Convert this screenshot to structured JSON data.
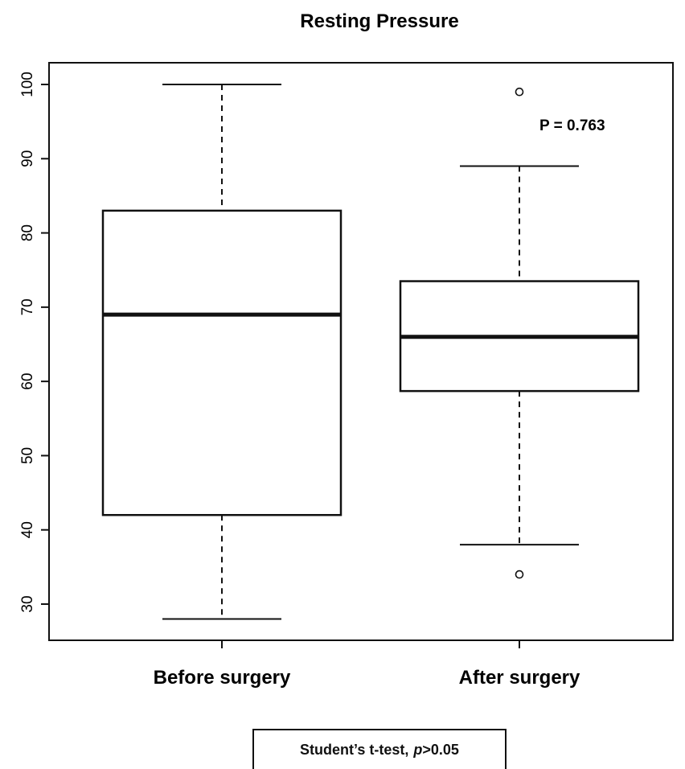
{
  "chart_data": {
    "type": "boxplot",
    "title": "Resting Pressure",
    "xlabel": "",
    "ylabel": "",
    "ylim": [
      25,
      103
    ],
    "yticks": [
      30,
      40,
      50,
      60,
      70,
      80,
      90,
      100
    ],
    "categories": [
      "Before surgery",
      "After surgery"
    ],
    "boxes": [
      {
        "category": "Before surgery",
        "whisker_low": 28,
        "q1": 42,
        "median": 69,
        "q3": 83,
        "whisker_high": 100,
        "outliers": []
      },
      {
        "category": "After surgery",
        "whisker_low": 38,
        "q1": 58.7,
        "median": 66,
        "q3": 73.5,
        "whisker_high": 89,
        "outliers": [
          34,
          99
        ]
      }
    ],
    "annotations": [
      {
        "text": "P = 0.763",
        "category": "After surgery",
        "y": 94.6
      }
    ],
    "grid": false,
    "legend": "none"
  },
  "note": {
    "prefix": "Student’s t-test,",
    "p_italic": "p",
    "suffix": ">0.05"
  }
}
